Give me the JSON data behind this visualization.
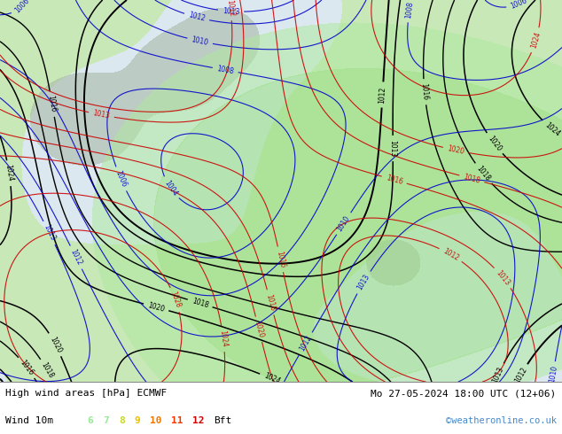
{
  "title_left": "High wind areas [hPa] ECMWF",
  "title_right": "Mo 27-05-2024 18:00 UTC (12+06)",
  "legend_label": "Wind 10m",
  "bft_numbers": [
    "6",
    "7",
    "8",
    "9",
    "10",
    "11",
    "12"
  ],
  "bft_colors": [
    "#98e898",
    "#98e898",
    "#c8d820",
    "#f0c000",
    "#f07800",
    "#f03800",
    "#d00000"
  ],
  "bft_suffix": "Bft",
  "credit": "©weatheronline.co.uk",
  "credit_color": "#4488cc",
  "map_bg_color": "#ffffff",
  "fig_bg_color": "#ffffff",
  "footer_bg": "#e8e8e8",
  "figsize": [
    6.34,
    4.9
  ],
  "dpi": 100,
  "sea_color": "#dce8f0",
  "land_color": "#c8e8b8",
  "gray_color": "#a8b8a8",
  "wind_green": "#90e890",
  "line_black": "#000000",
  "line_blue": "#0000cc",
  "line_red": "#cc0000"
}
